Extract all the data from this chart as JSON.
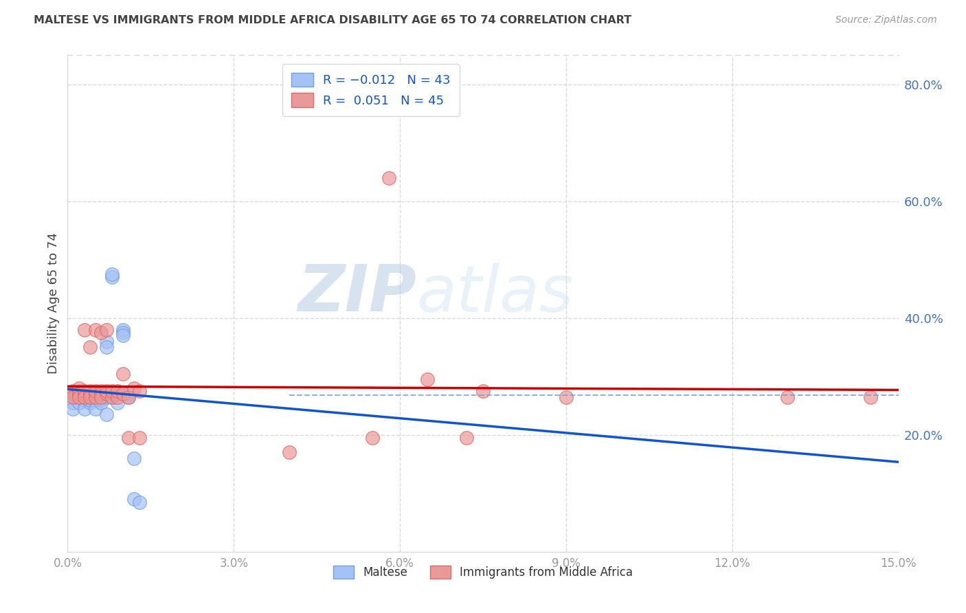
{
  "title": "MALTESE VS IMMIGRANTS FROM MIDDLE AFRICA DISABILITY AGE 65 TO 74 CORRELATION CHART",
  "source": "Source: ZipAtlas.com",
  "ylabel": "Disability Age 65 to 74",
  "xlim": [
    0.0,
    0.15
  ],
  "ylim": [
    0.0,
    0.85
  ],
  "xticks": [
    0.0,
    0.03,
    0.06,
    0.09,
    0.12,
    0.15
  ],
  "xticklabels": [
    "0.0%",
    "3.0%",
    "6.0%",
    "9.0%",
    "12.0%",
    "15.0%"
  ],
  "yticks_right": [
    0.2,
    0.4,
    0.6,
    0.8
  ],
  "ytick_right_labels": [
    "20.0%",
    "40.0%",
    "60.0%",
    "80.0%"
  ],
  "maltese_color": "#a4c2f4",
  "immigrants_color": "#ea9999",
  "maltese_edge_color": "#6d9eeb",
  "immigrants_edge_color": "#e06666",
  "maltese_line_color": "#1155cc",
  "immigrants_line_color": "#cc0000",
  "maltese_dash_color": "#6d9eeb",
  "legend_label_1": "R = -0.012   N = 43",
  "legend_label_2": "R =  0.051   N = 45",
  "legend_series_1": "Maltese",
  "legend_series_2": "Immigrants from Middle Africa",
  "watermark_zip": "ZIP",
  "watermark_atlas": "atlas",
  "maltese_x": [
    0.001,
    0.001,
    0.001,
    0.002,
    0.002,
    0.002,
    0.002,
    0.003,
    0.003,
    0.003,
    0.003,
    0.003,
    0.004,
    0.004,
    0.004,
    0.004,
    0.005,
    0.005,
    0.005,
    0.005,
    0.005,
    0.006,
    0.006,
    0.006,
    0.006,
    0.007,
    0.007,
    0.007,
    0.007,
    0.008,
    0.008,
    0.008,
    0.009,
    0.009,
    0.009,
    0.01,
    0.01,
    0.01,
    0.011,
    0.011,
    0.012,
    0.012,
    0.013
  ],
  "maltese_y": [
    0.265,
    0.255,
    0.245,
    0.27,
    0.265,
    0.255,
    0.27,
    0.27,
    0.265,
    0.26,
    0.27,
    0.245,
    0.265,
    0.255,
    0.27,
    0.26,
    0.265,
    0.27,
    0.26,
    0.265,
    0.245,
    0.265,
    0.26,
    0.255,
    0.27,
    0.36,
    0.35,
    0.265,
    0.235,
    0.265,
    0.47,
    0.475,
    0.27,
    0.255,
    0.27,
    0.38,
    0.375,
    0.37,
    0.27,
    0.265,
    0.16,
    0.09,
    0.085
  ],
  "immigrants_x": [
    0.001,
    0.001,
    0.001,
    0.002,
    0.002,
    0.002,
    0.002,
    0.003,
    0.003,
    0.003,
    0.003,
    0.004,
    0.004,
    0.004,
    0.004,
    0.005,
    0.005,
    0.005,
    0.005,
    0.006,
    0.006,
    0.006,
    0.006,
    0.007,
    0.007,
    0.007,
    0.008,
    0.008,
    0.009,
    0.009,
    0.01,
    0.01,
    0.011,
    0.011,
    0.012,
    0.013,
    0.013,
    0.04,
    0.055,
    0.065,
    0.072,
    0.075,
    0.09,
    0.13,
    0.145
  ],
  "immigrants_y": [
    0.27,
    0.275,
    0.265,
    0.275,
    0.28,
    0.27,
    0.265,
    0.27,
    0.275,
    0.265,
    0.38,
    0.27,
    0.275,
    0.265,
    0.35,
    0.27,
    0.265,
    0.275,
    0.38,
    0.275,
    0.27,
    0.265,
    0.375,
    0.27,
    0.275,
    0.38,
    0.265,
    0.275,
    0.265,
    0.275,
    0.27,
    0.305,
    0.265,
    0.195,
    0.28,
    0.275,
    0.195,
    0.17,
    0.195,
    0.295,
    0.195,
    0.275,
    0.265,
    0.265,
    0.265
  ],
  "immigrants_outlier_x": [
    0.058
  ],
  "immigrants_outlier_y": [
    0.64
  ],
  "maltese_R": -0.012,
  "maltese_N": 43,
  "immigrants_R": 0.051,
  "immigrants_N": 45,
  "grid_color": "#d9d9d9",
  "spine_color": "#d9d9d9",
  "title_color": "#434343",
  "source_color": "#999999",
  "right_tick_color": "#4472c4",
  "bottom_tick_color": "#999999"
}
